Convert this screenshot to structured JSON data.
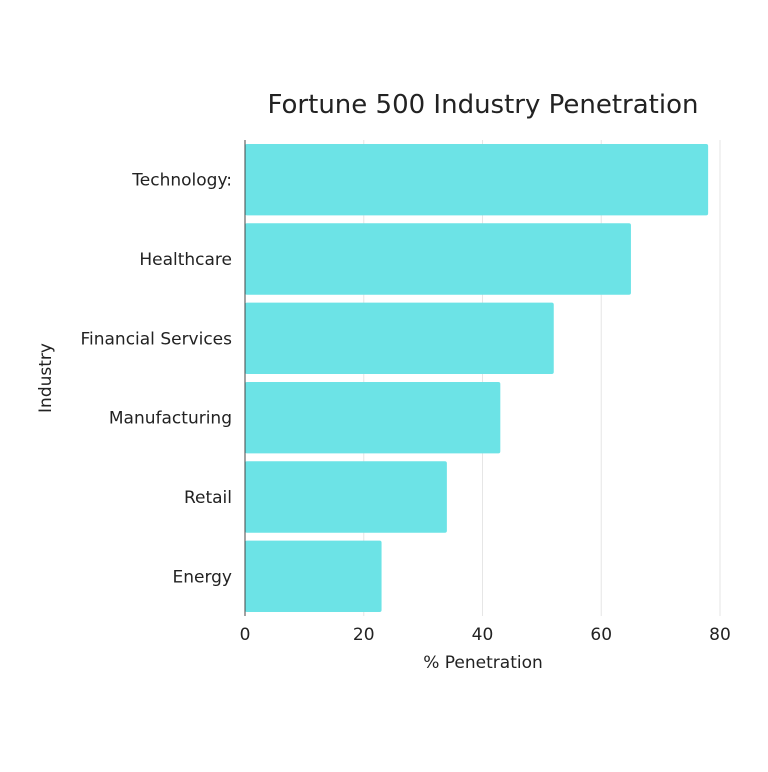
{
  "chart_data": {
    "type": "bar",
    "orientation": "horizontal",
    "title": "Fortune 500 Industry Penetration",
    "xlabel": "% Penetration",
    "ylabel": "Industry",
    "categories": [
      "Technology:",
      "Healthcare",
      "Financial Services",
      "Manufacturing",
      "Retail",
      "Energy"
    ],
    "values": [
      78,
      65,
      52,
      43,
      34,
      23
    ],
    "xlim": [
      0,
      80
    ],
    "xticks": [
      "0",
      "20",
      "40",
      "60",
      "80"
    ],
    "grid": true,
    "bar_color": "#6ce3e6"
  }
}
